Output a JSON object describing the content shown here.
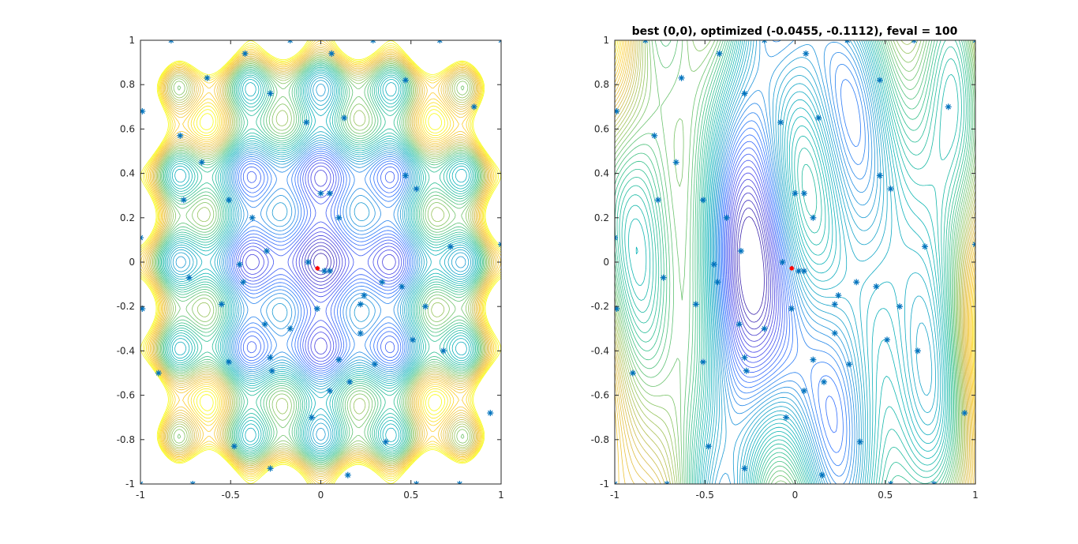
{
  "colors": {
    "marker": "#0072BD",
    "best": "#ff0000",
    "colormap": [
      "#3e26a8",
      "#4746eb",
      "#2f73ff",
      "#199ecf",
      "#0ab4b6",
      "#32c08a",
      "#8fc45e",
      "#d9ba45",
      "#fcca2e",
      "#f9fb15"
    ]
  },
  "chart_data": [
    {
      "type": "contour",
      "title": "",
      "xlabel": "",
      "ylabel": "",
      "xlim": [
        -1,
        1
      ],
      "ylim": [
        -1,
        1
      ],
      "xticks": [
        "-1",
        "-0.5",
        "0",
        "0.5",
        "1"
      ],
      "yticks": [
        "-1",
        "-0.8",
        "-0.6",
        "-0.4",
        "-0.2",
        "0",
        "0.2",
        "0.4",
        "0.6",
        "0.8",
        "1"
      ],
      "samples": [
        [
          -0.83,
          1.0
        ],
        [
          -0.42,
          0.94
        ],
        [
          -0.17,
          1.0
        ],
        [
          0.06,
          0.94
        ],
        [
          0.29,
          1.0
        ],
        [
          0.66,
          1.0
        ],
        [
          1.0,
          1.0
        ],
        [
          -0.63,
          0.83
        ],
        [
          -0.28,
          0.76
        ],
        [
          0.47,
          0.82
        ],
        [
          -0.99,
          0.68
        ],
        [
          0.85,
          0.7
        ],
        [
          -0.08,
          0.63
        ],
        [
          0.13,
          0.65
        ],
        [
          -0.78,
          0.57
        ],
        [
          -0.66,
          0.45
        ],
        [
          0.47,
          0.39
        ],
        [
          -0.51,
          0.28
        ],
        [
          0.0,
          0.31
        ],
        [
          0.05,
          0.31
        ],
        [
          0.53,
          0.33
        ],
        [
          -0.76,
          0.28
        ],
        [
          -0.38,
          0.2
        ],
        [
          0.1,
          0.2
        ],
        [
          -1.0,
          0.11
        ],
        [
          0.72,
          0.07
        ],
        [
          1.0,
          0.08
        ],
        [
          -0.3,
          0.05
        ],
        [
          -0.07,
          0.0
        ],
        [
          -0.45,
          -0.01
        ],
        [
          0.02,
          -0.04
        ],
        [
          0.05,
          -0.04
        ],
        [
          -0.73,
          -0.07
        ],
        [
          -0.43,
          -0.09
        ],
        [
          0.34,
          -0.09
        ],
        [
          0.45,
          -0.11
        ],
        [
          0.24,
          -0.15
        ],
        [
          -0.55,
          -0.19
        ],
        [
          0.22,
          -0.19
        ],
        [
          -0.02,
          -0.21
        ],
        [
          -0.99,
          -0.21
        ],
        [
          0.58,
          -0.2
        ],
        [
          -0.31,
          -0.28
        ],
        [
          -0.17,
          -0.3
        ],
        [
          0.22,
          -0.32
        ],
        [
          -0.28,
          -0.43
        ],
        [
          0.51,
          -0.35
        ],
        [
          0.68,
          -0.4
        ],
        [
          0.1,
          -0.44
        ],
        [
          -0.51,
          -0.45
        ],
        [
          -0.9,
          -0.5
        ],
        [
          0.3,
          -0.46
        ],
        [
          -0.27,
          -0.49
        ],
        [
          0.16,
          -0.54
        ],
        [
          0.05,
          -0.58
        ],
        [
          -0.05,
          -0.7
        ],
        [
          0.94,
          -0.68
        ],
        [
          -0.48,
          -0.83
        ],
        [
          -0.28,
          -0.93
        ],
        [
          0.36,
          -0.81
        ],
        [
          0.15,
          -0.96
        ],
        [
          0.53,
          -1.0
        ],
        [
          -1.0,
          -1.0
        ],
        [
          -0.71,
          -1.0
        ],
        [
          0.77,
          -1.0
        ]
      ],
      "best_point": [
        -0.0455,
        -0.1112
      ]
    },
    {
      "type": "contour",
      "title": "best (0,0), optimized (-0.0455, -0.1112), feval = 100",
      "xlabel": "",
      "ylabel": "",
      "xlim": [
        -1,
        1
      ],
      "ylim": [
        -1,
        1
      ],
      "xticks": [
        "-1",
        "-0.5",
        "0",
        "0.5",
        "1"
      ],
      "yticks": [
        "-1",
        "-0.8",
        "-0.6",
        "-0.4",
        "-0.2",
        "0",
        "0.2",
        "0.4",
        "0.6",
        "0.8",
        "1"
      ],
      "best_point": [
        -0.0455,
        -0.1112
      ]
    }
  ]
}
